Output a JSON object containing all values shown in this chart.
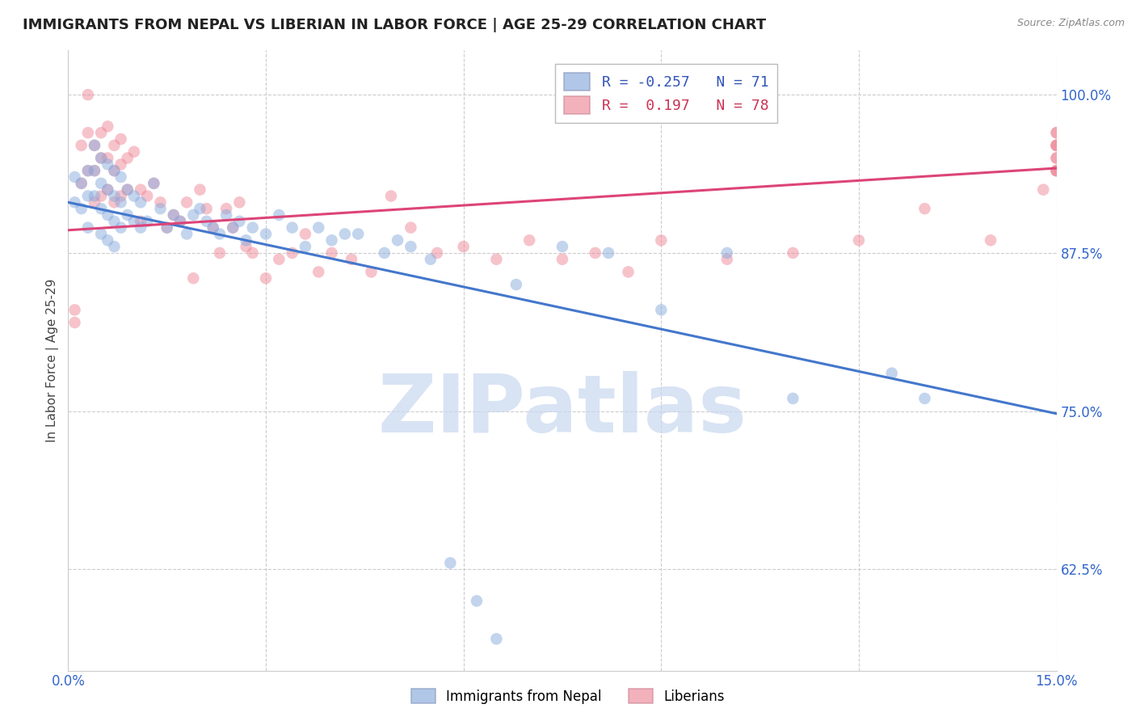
{
  "title": "IMMIGRANTS FROM NEPAL VS LIBERIAN IN LABOR FORCE | AGE 25-29 CORRELATION CHART",
  "source": "Source: ZipAtlas.com",
  "ylabel": "In Labor Force | Age 25-29",
  "x_min": 0.0,
  "x_max": 0.15,
  "y_min": 0.545,
  "y_max": 1.035,
  "x_ticks": [
    0.0,
    0.03,
    0.06,
    0.09,
    0.12,
    0.15
  ],
  "x_tick_labels": [
    "0.0%",
    "",
    "",
    "",
    "",
    "15.0%"
  ],
  "y_ticks": [
    0.625,
    0.75,
    0.875,
    1.0
  ],
  "y_tick_labels": [
    "62.5%",
    "75.0%",
    "87.5%",
    "100.0%"
  ],
  "nepal_color": "#88aadd",
  "liberia_color": "#ee8899",
  "nepal_line_color": "#4477cc",
  "liberia_line_color": "#dd4477",
  "nepal_line_x0": 0.0,
  "nepal_line_y0": 0.915,
  "nepal_line_x1": 0.15,
  "nepal_line_y1": 0.748,
  "liberia_line_x0": 0.0,
  "liberia_line_y0": 0.893,
  "liberia_line_x1": 0.15,
  "liberia_line_y1": 0.942,
  "nepal_scatter_x": [
    0.001,
    0.001,
    0.002,
    0.002,
    0.003,
    0.003,
    0.003,
    0.004,
    0.004,
    0.004,
    0.005,
    0.005,
    0.005,
    0.005,
    0.006,
    0.006,
    0.006,
    0.006,
    0.007,
    0.007,
    0.007,
    0.007,
    0.008,
    0.008,
    0.008,
    0.009,
    0.009,
    0.01,
    0.01,
    0.011,
    0.011,
    0.012,
    0.013,
    0.014,
    0.015,
    0.016,
    0.017,
    0.018,
    0.019,
    0.02,
    0.021,
    0.022,
    0.023,
    0.024,
    0.025,
    0.026,
    0.027,
    0.028,
    0.03,
    0.032,
    0.034,
    0.036,
    0.038,
    0.04,
    0.042,
    0.044,
    0.048,
    0.05,
    0.052,
    0.055,
    0.058,
    0.062,
    0.065,
    0.068,
    0.075,
    0.082,
    0.09,
    0.1,
    0.11,
    0.125,
    0.13
  ],
  "nepal_scatter_y": [
    0.935,
    0.915,
    0.93,
    0.91,
    0.94,
    0.92,
    0.895,
    0.96,
    0.94,
    0.92,
    0.95,
    0.93,
    0.91,
    0.89,
    0.945,
    0.925,
    0.905,
    0.885,
    0.94,
    0.92,
    0.9,
    0.88,
    0.935,
    0.915,
    0.895,
    0.925,
    0.905,
    0.92,
    0.9,
    0.915,
    0.895,
    0.9,
    0.93,
    0.91,
    0.895,
    0.905,
    0.9,
    0.89,
    0.905,
    0.91,
    0.9,
    0.895,
    0.89,
    0.905,
    0.895,
    0.9,
    0.885,
    0.895,
    0.89,
    0.905,
    0.895,
    0.88,
    0.895,
    0.885,
    0.89,
    0.89,
    0.875,
    0.885,
    0.88,
    0.87,
    0.63,
    0.6,
    0.57,
    0.85,
    0.88,
    0.875,
    0.83,
    0.875,
    0.76,
    0.78,
    0.76
  ],
  "liberia_scatter_x": [
    0.001,
    0.001,
    0.002,
    0.002,
    0.003,
    0.003,
    0.003,
    0.004,
    0.004,
    0.004,
    0.005,
    0.005,
    0.005,
    0.006,
    0.006,
    0.006,
    0.007,
    0.007,
    0.007,
    0.008,
    0.008,
    0.008,
    0.009,
    0.009,
    0.01,
    0.011,
    0.011,
    0.012,
    0.013,
    0.014,
    0.015,
    0.016,
    0.017,
    0.018,
    0.019,
    0.02,
    0.021,
    0.022,
    0.023,
    0.024,
    0.025,
    0.026,
    0.027,
    0.028,
    0.03,
    0.032,
    0.034,
    0.036,
    0.038,
    0.04,
    0.043,
    0.046,
    0.049,
    0.052,
    0.056,
    0.06,
    0.065,
    0.07,
    0.075,
    0.08,
    0.085,
    0.09,
    0.1,
    0.11,
    0.12,
    0.13,
    0.14,
    0.148,
    0.15,
    0.15,
    0.15,
    0.15,
    0.15,
    0.15,
    0.15,
    0.15,
    0.15,
    0.15
  ],
  "liberia_scatter_y": [
    0.83,
    0.82,
    0.96,
    0.93,
    1.0,
    0.97,
    0.94,
    0.96,
    0.94,
    0.915,
    0.97,
    0.95,
    0.92,
    0.975,
    0.95,
    0.925,
    0.96,
    0.94,
    0.915,
    0.965,
    0.945,
    0.92,
    0.95,
    0.925,
    0.955,
    0.925,
    0.9,
    0.92,
    0.93,
    0.915,
    0.895,
    0.905,
    0.9,
    0.915,
    0.855,
    0.925,
    0.91,
    0.895,
    0.875,
    0.91,
    0.895,
    0.915,
    0.88,
    0.875,
    0.855,
    0.87,
    0.875,
    0.89,
    0.86,
    0.875,
    0.87,
    0.86,
    0.92,
    0.895,
    0.875,
    0.88,
    0.87,
    0.885,
    0.87,
    0.875,
    0.86,
    0.885,
    0.87,
    0.875,
    0.885,
    0.91,
    0.885,
    0.925,
    0.94,
    0.95,
    0.96,
    0.97,
    0.94,
    0.95,
    0.96,
    0.97,
    0.94,
    0.96
  ],
  "watermark_text": "ZIPatlas",
  "watermark_color": "#c8d8f0",
  "background_color": "#ffffff",
  "grid_color": "#cccccc",
  "legend_nepal_label": "R = -0.257   N = 71",
  "legend_liberia_label": "R =  0.197   N = 78",
  "bottom_legend_nepal": "Immigrants from Nepal",
  "bottom_legend_liberia": "Liberians"
}
